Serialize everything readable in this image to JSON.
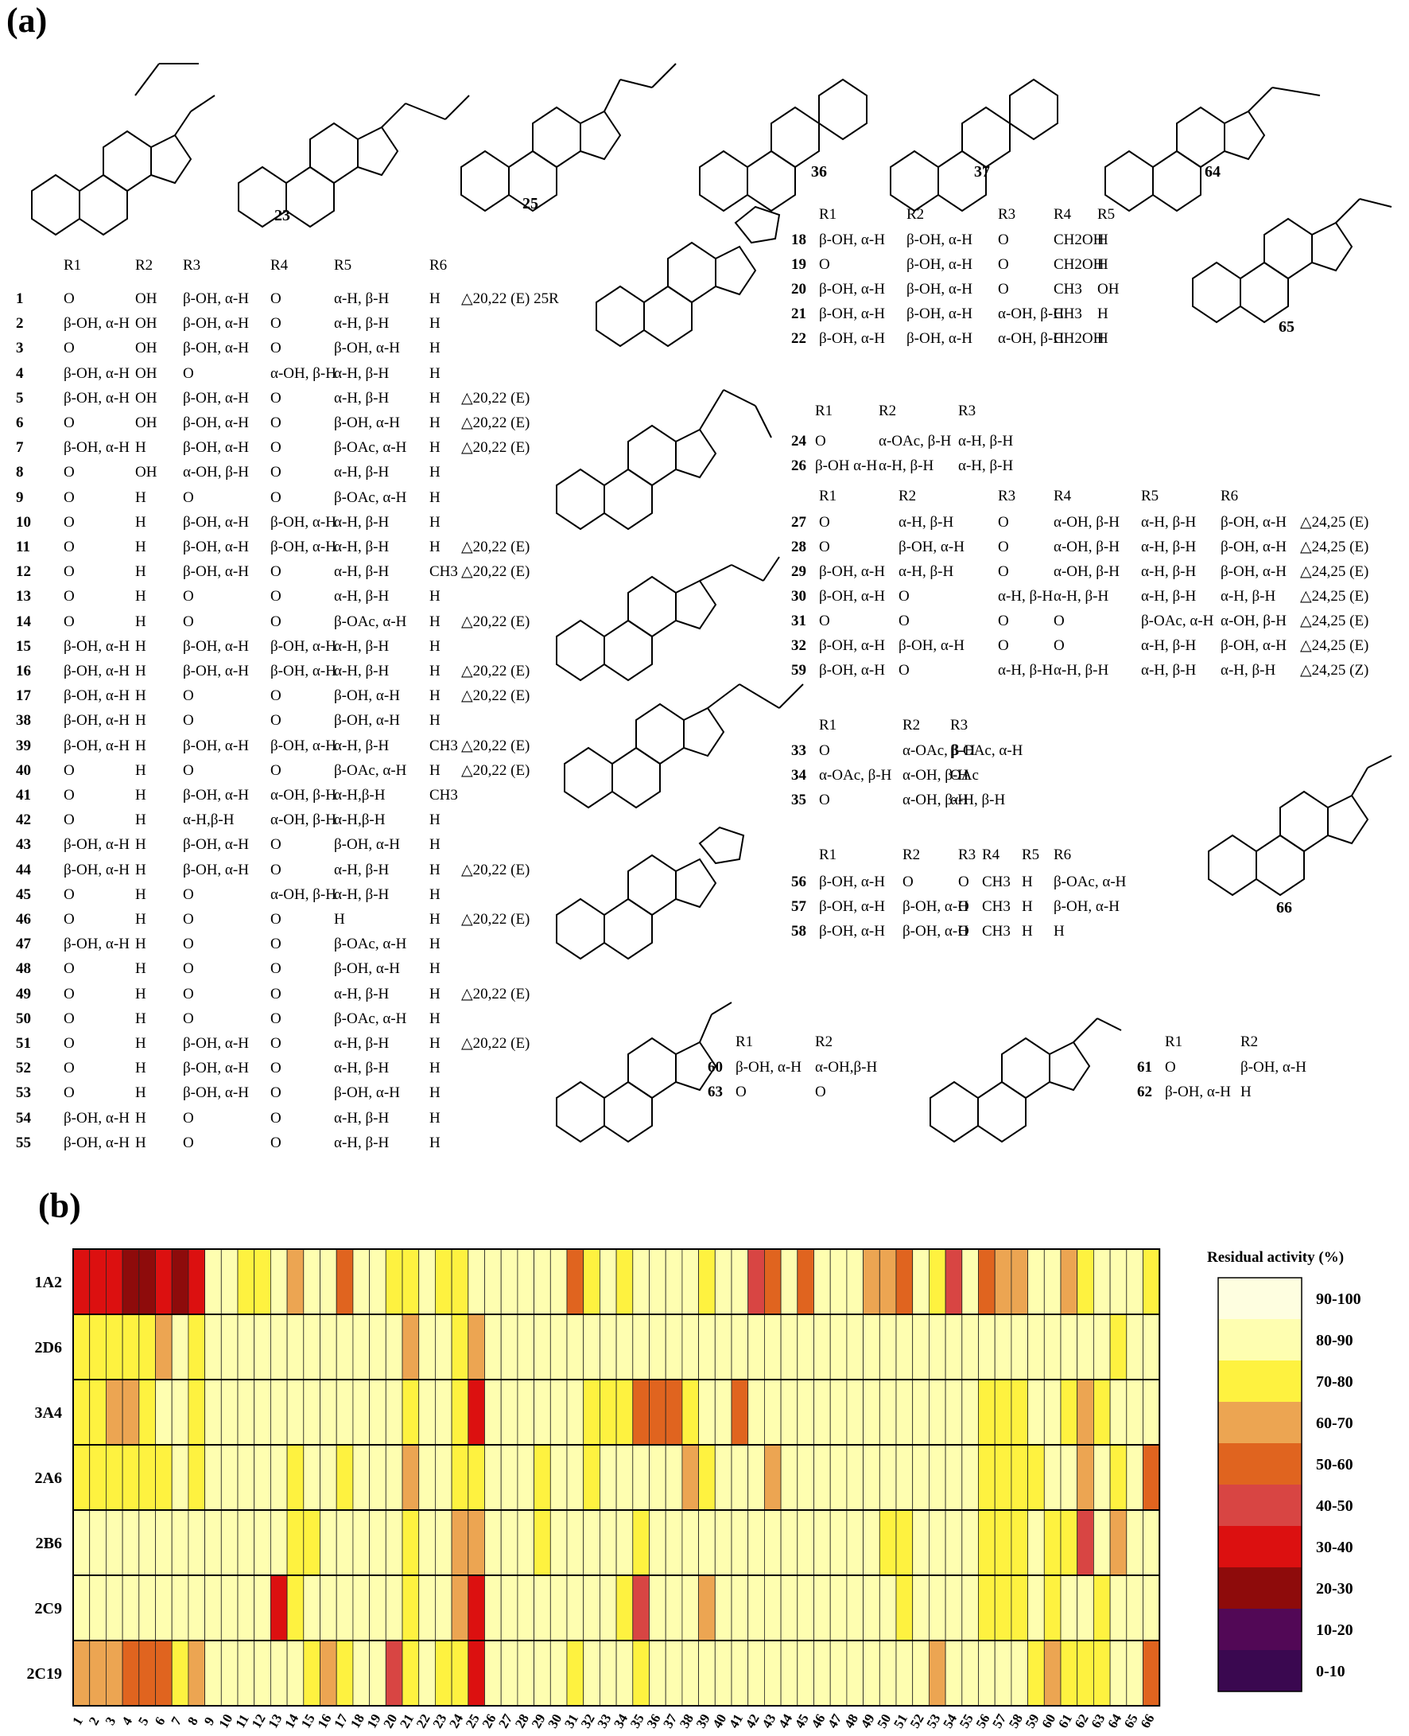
{
  "panel_a_label": "(a)",
  "panel_b_label": "(b)",
  "structure_labels": [
    "23",
    "25",
    "36",
    "37",
    "64",
    "65",
    "66"
  ],
  "table1": {
    "headers": [
      "R1",
      "R2",
      "R3",
      "R4",
      "R5",
      "R6"
    ],
    "rows": [
      [
        "1",
        "O",
        "OH",
        "β-OH, α-H",
        "O",
        "α-H, β-H",
        "H",
        "△20,22 (E) 25R"
      ],
      [
        "2",
        "β-OH, α-H",
        "OH",
        "β-OH, α-H",
        "O",
        "α-H, β-H",
        "H",
        ""
      ],
      [
        "3",
        "O",
        "OH",
        "β-OH, α-H",
        "O",
        "β-OH, α-H",
        "H",
        ""
      ],
      [
        "4",
        "β-OH, α-H",
        "OH",
        "O",
        "α-OH, β-H",
        "α-H, β-H",
        "H",
        ""
      ],
      [
        "5",
        "β-OH, α-H",
        "OH",
        "β-OH, α-H",
        "O",
        "α-H, β-H",
        "H",
        "△20,22 (E)"
      ],
      [
        "6",
        "O",
        "OH",
        "β-OH, α-H",
        "O",
        "β-OH, α-H",
        "H",
        "△20,22 (E)"
      ],
      [
        "7",
        "β-OH, α-H",
        "H",
        "β-OH, α-H",
        "O",
        "β-OAc, α-H",
        "H",
        "△20,22 (E)"
      ],
      [
        "8",
        "O",
        "OH",
        "α-OH, β-H",
        "O",
        "α-H, β-H",
        "H",
        ""
      ],
      [
        "9",
        "O",
        "H",
        "O",
        "O",
        "β-OAc, α-H",
        "H",
        ""
      ],
      [
        "10",
        "O",
        "H",
        "β-OH, α-H",
        "β-OH, α-H",
        "α-H, β-H",
        "H",
        ""
      ],
      [
        "11",
        "O",
        "H",
        "β-OH, α-H",
        "β-OH, α-H",
        "α-H, β-H",
        "H",
        "△20,22 (E)"
      ],
      [
        "12",
        "O",
        "H",
        "β-OH, α-H",
        "O",
        "α-H, β-H",
        "CH3",
        "△20,22 (E)"
      ],
      [
        "13",
        "O",
        "H",
        "O",
        "O",
        "α-H, β-H",
        "H",
        ""
      ],
      [
        "14",
        "O",
        "H",
        "O",
        "O",
        "β-OAc, α-H",
        "H",
        "△20,22 (E)"
      ],
      [
        "15",
        "β-OH, α-H",
        "H",
        "β-OH, α-H",
        "β-OH, α-H",
        "α-H, β-H",
        "H",
        ""
      ],
      [
        "16",
        "β-OH, α-H",
        "H",
        "β-OH, α-H",
        "β-OH, α-H",
        "α-H, β-H",
        "H",
        "△20,22 (E)"
      ],
      [
        "17",
        "β-OH, α-H",
        "H",
        "O",
        "O",
        "β-OH, α-H",
        "H",
        "△20,22 (E)"
      ],
      [
        "38",
        "β-OH, α-H",
        "H",
        "O",
        "O",
        "β-OH, α-H",
        "H",
        ""
      ],
      [
        "39",
        "β-OH, α-H",
        "H",
        "β-OH, α-H",
        "β-OH, α-H",
        "α-H, β-H",
        "CH3",
        "△20,22 (E)"
      ],
      [
        "40",
        "O",
        "H",
        "O",
        "O",
        "β-OAc, α-H",
        "H",
        "△20,22 (E)"
      ],
      [
        "41",
        "O",
        "H",
        "β-OH, α-H",
        "α-OH, β-H",
        "α-H,β-H",
        "CH3",
        ""
      ],
      [
        "42",
        "O",
        "H",
        "α-H,β-H",
        "α-OH, β-H",
        "α-H,β-H",
        "H",
        ""
      ],
      [
        "43",
        "β-OH, α-H",
        "H",
        "β-OH, α-H",
        "O",
        "β-OH, α-H",
        "H",
        ""
      ],
      [
        "44",
        "β-OH, α-H",
        "H",
        "β-OH, α-H",
        "O",
        "α-H, β-H",
        "H",
        "△20,22 (E)"
      ],
      [
        "45",
        "O",
        "H",
        "O",
        "α-OH, β-H",
        "α-H, β-H",
        "H",
        ""
      ],
      [
        "46",
        "O",
        "H",
        "O",
        "O",
        "H",
        "H",
        "△20,22 (E)"
      ],
      [
        "47",
        "β-OH, α-H",
        "H",
        "O",
        "O",
        "β-OAc, α-H",
        "H",
        ""
      ],
      [
        "48",
        "O",
        "H",
        "O",
        "O",
        "β-OH, α-H",
        "H",
        ""
      ],
      [
        "49",
        "O",
        "H",
        "O",
        "O",
        "α-H, β-H",
        "H",
        "△20,22 (E)"
      ],
      [
        "50",
        "O",
        "H",
        "O",
        "O",
        "β-OAc, α-H",
        "H",
        ""
      ],
      [
        "51",
        "O",
        "H",
        "β-OH, α-H",
        "O",
        "α-H, β-H",
        "H",
        "△20,22 (E)"
      ],
      [
        "52",
        "O",
        "H",
        "β-OH, α-H",
        "O",
        "α-H, β-H",
        "H",
        ""
      ],
      [
        "53",
        "O",
        "H",
        "β-OH, α-H",
        "O",
        "β-OH, α-H",
        "H",
        ""
      ],
      [
        "54",
        "β-OH, α-H",
        "H",
        "O",
        "O",
        "α-H, β-H",
        "H",
        ""
      ],
      [
        "55",
        "β-OH, α-H",
        "H",
        "O",
        "O",
        "α-H, β-H",
        "H",
        ""
      ]
    ]
  },
  "table2": {
    "headers": [
      "R1",
      "R2",
      "R3",
      "R4",
      "R5"
    ],
    "rows": [
      [
        "18",
        "β-OH, α-H",
        "β-OH, α-H",
        "O",
        "CH2OH",
        "H"
      ],
      [
        "19",
        "O",
        "β-OH, α-H",
        "O",
        "CH2OH",
        "H"
      ],
      [
        "20",
        "β-OH, α-H",
        "β-OH, α-H",
        "O",
        "CH3",
        "OH"
      ],
      [
        "21",
        "β-OH, α-H",
        "β-OH, α-H",
        "α-OH, β-H",
        "CH3",
        "H"
      ],
      [
        "22",
        "β-OH, α-H",
        "β-OH, α-H",
        "α-OH, β-H",
        "CH2OH",
        "H"
      ]
    ]
  },
  "table3": {
    "headers": [
      "R1",
      "R2",
      "R3"
    ],
    "rows": [
      [
        "24",
        "O",
        "α-OAc, β-H",
        "α-H, β-H"
      ],
      [
        "26",
        "β-OH α-H",
        "α-H, β-H",
        "α-H, β-H"
      ]
    ]
  },
  "table4": {
    "headers": [
      "R1",
      "R2",
      "R3",
      "R4",
      "R5",
      "R6"
    ],
    "rows": [
      [
        "27",
        "O",
        "α-H, β-H",
        "O",
        "α-OH, β-H",
        "α-H, β-H",
        "β-OH, α-H",
        "△24,25 (E)"
      ],
      [
        "28",
        "O",
        "β-OH, α-H",
        "O",
        "α-OH, β-H",
        "α-H, β-H",
        "β-OH, α-H",
        "△24,25 (E)"
      ],
      [
        "29",
        "β-OH, α-H",
        "α-H, β-H",
        "O",
        "α-OH, β-H",
        "α-H, β-H",
        "β-OH, α-H",
        "△24,25 (E)"
      ],
      [
        "30",
        "β-OH, α-H",
        "O",
        "α-H, β-H",
        "α-H, β-H",
        "α-H, β-H",
        "α-H, β-H",
        "△24,25 (E)"
      ],
      [
        "31",
        "O",
        "O",
        "O",
        "O",
        "β-OAc, α-H",
        "α-OH, β-H",
        "△24,25 (E)"
      ],
      [
        "32",
        "β-OH, α-H",
        "β-OH, α-H",
        "O",
        "O",
        "α-H, β-H",
        "β-OH, α-H",
        "△24,25 (E)"
      ],
      [
        "59",
        "β-OH, α-H",
        "O",
        "α-H, β-H",
        "α-H, β-H",
        "α-H, β-H",
        "α-H, β-H",
        "△24,25 (Z)"
      ]
    ]
  },
  "table5": {
    "headers": [
      "R1",
      "R2",
      "R3"
    ],
    "rows": [
      [
        "33",
        "O",
        "α-OAc, β-H",
        "β-OAc, α-H"
      ],
      [
        "34",
        "α-OAc, β-H",
        "α-OH, β-H",
        "OAc"
      ],
      [
        "35",
        "O",
        "α-OH, β-H",
        "α-H, β-H"
      ]
    ]
  },
  "table6": {
    "headers": [
      "R1",
      "R2",
      "R3",
      "R4",
      "R5",
      "R6"
    ],
    "rows": [
      [
        "56",
        "β-OH, α-H",
        "O",
        "O",
        "CH3",
        "H",
        "β-OAc, α-H"
      ],
      [
        "57",
        "β-OH, α-H",
        "β-OH, α-H",
        "O",
        "CH3",
        "H",
        "β-OH, α-H"
      ],
      [
        "58",
        "β-OH, α-H",
        "β-OH, α-H",
        "O",
        "CH3",
        "H",
        "H"
      ]
    ]
  },
  "table7": {
    "headers": [
      "R1",
      "R2"
    ],
    "rows": [
      [
        "60",
        "β-OH, α-H",
        "α-OH,β-H"
      ],
      [
        "63",
        "O",
        "O"
      ]
    ]
  },
  "table8": {
    "headers": [
      "R1",
      "R2"
    ],
    "rows": [
      [
        "61",
        "O",
        "β-OH, α-H"
      ],
      [
        "62",
        "β-OH, α-H",
        "H"
      ]
    ]
  },
  "chart_data": {
    "type": "heatmap",
    "title": "",
    "rows": [
      "1A2",
      "2D6",
      "3A4",
      "2A6",
      "2B6",
      "2C9",
      "2C19"
    ],
    "columns": [
      "1",
      "2",
      "3",
      "4",
      "5",
      "6",
      "7",
      "8",
      "9",
      "10",
      "11",
      "12",
      "13",
      "14",
      "15",
      "16",
      "17",
      "18",
      "19",
      "20",
      "21",
      "22",
      "23",
      "24",
      "25",
      "26",
      "27",
      "28",
      "29",
      "30",
      "31",
      "32",
      "33",
      "34",
      "35",
      "36",
      "37",
      "38",
      "39",
      "40",
      "41",
      "42",
      "43",
      "44",
      "45",
      "46",
      "47",
      "48",
      "49",
      "50",
      "51",
      "52",
      "53",
      "54",
      "55",
      "56",
      "57",
      "58",
      "59",
      "60",
      "61",
      "62",
      "63",
      "64",
      "65",
      "66"
    ],
    "values": [
      [
        35,
        35,
        35,
        25,
        25,
        35,
        25,
        35,
        85,
        85,
        75,
        75,
        85,
        65,
        85,
        85,
        55,
        85,
        85,
        75,
        75,
        85,
        75,
        75,
        85,
        85,
        85,
        85,
        85,
        85,
        55,
        75,
        85,
        75,
        85,
        85,
        85,
        85,
        75,
        85,
        85,
        45,
        55,
        85,
        55,
        85,
        85,
        85,
        65,
        65,
        55,
        85,
        75,
        45,
        85,
        55,
        65,
        65,
        85,
        85,
        65,
        75,
        85,
        85,
        85,
        75
      ],
      [
        75,
        75,
        75,
        75,
        75,
        65,
        85,
        75,
        85,
        85,
        85,
        85,
        85,
        85,
        85,
        85,
        85,
        85,
        85,
        85,
        65,
        85,
        85,
        75,
        65,
        85,
        85,
        85,
        85,
        85,
        85,
        85,
        85,
        85,
        85,
        85,
        85,
        85,
        85,
        85,
        85,
        85,
        85,
        85,
        85,
        85,
        85,
        85,
        85,
        85,
        85,
        85,
        85,
        85,
        85,
        85,
        85,
        85,
        85,
        85,
        85,
        85,
        85,
        75,
        85,
        85
      ],
      [
        75,
        75,
        65,
        65,
        75,
        85,
        85,
        75,
        85,
        85,
        85,
        85,
        85,
        85,
        85,
        85,
        85,
        85,
        85,
        85,
        75,
        85,
        85,
        75,
        35,
        85,
        85,
        85,
        85,
        85,
        85,
        75,
        75,
        75,
        55,
        55,
        55,
        75,
        85,
        85,
        55,
        85,
        85,
        85,
        85,
        85,
        85,
        85,
        85,
        85,
        85,
        85,
        85,
        85,
        85,
        75,
        75,
        75,
        85,
        85,
        75,
        65,
        75,
        85,
        85,
        85
      ],
      [
        75,
        75,
        75,
        75,
        75,
        75,
        85,
        75,
        85,
        85,
        85,
        85,
        85,
        75,
        85,
        85,
        75,
        85,
        85,
        85,
        65,
        85,
        85,
        75,
        75,
        85,
        85,
        85,
        75,
        85,
        85,
        75,
        85,
        85,
        85,
        85,
        85,
        65,
        75,
        85,
        85,
        85,
        65,
        85,
        85,
        85,
        85,
        85,
        85,
        85,
        85,
        85,
        85,
        85,
        85,
        75,
        75,
        75,
        75,
        85,
        85,
        65,
        85,
        75,
        85,
        55
      ],
      [
        85,
        85,
        85,
        85,
        85,
        85,
        85,
        85,
        85,
        85,
        85,
        85,
        85,
        75,
        75,
        85,
        85,
        85,
        85,
        85,
        75,
        85,
        85,
        65,
        65,
        85,
        85,
        85,
        75,
        85,
        85,
        85,
        85,
        85,
        75,
        85,
        85,
        85,
        85,
        85,
        85,
        85,
        85,
        85,
        85,
        85,
        85,
        85,
        85,
        75,
        75,
        85,
        85,
        85,
        85,
        75,
        75,
        75,
        85,
        75,
        75,
        45,
        85,
        65,
        85,
        85
      ],
      [
        85,
        85,
        85,
        85,
        85,
        85,
        85,
        85,
        85,
        85,
        85,
        85,
        35,
        75,
        85,
        85,
        85,
        85,
        85,
        85,
        75,
        85,
        85,
        65,
        35,
        85,
        85,
        85,
        85,
        85,
        85,
        85,
        85,
        75,
        45,
        85,
        85,
        85,
        65,
        85,
        85,
        85,
        85,
        85,
        85,
        85,
        85,
        85,
        85,
        85,
        75,
        85,
        85,
        85,
        85,
        75,
        75,
        75,
        85,
        75,
        85,
        85,
        75,
        85,
        85,
        85
      ],
      [
        65,
        65,
        65,
        55,
        55,
        55,
        75,
        65,
        85,
        85,
        85,
        85,
        85,
        85,
        75,
        65,
        75,
        85,
        85,
        45,
        75,
        85,
        75,
        75,
        35,
        85,
        85,
        85,
        85,
        85,
        75,
        85,
        85,
        85,
        75,
        85,
        85,
        85,
        85,
        85,
        85,
        85,
        85,
        85,
        85,
        85,
        85,
        85,
        85,
        85,
        85,
        85,
        65,
        85,
        85,
        85,
        85,
        85,
        75,
        65,
        75,
        75,
        75,
        85,
        85,
        55
      ]
    ],
    "value_meaning": "residual activity (%) bin midpoint",
    "legend": {
      "title": "Residual activity (%)",
      "labels": [
        "90-100",
        "80-90",
        "70-80",
        "60-70",
        "50-60",
        "40-50",
        "30-40",
        "20-30",
        "10-20",
        "0-10"
      ],
      "colors": [
        "#fefee0",
        "#fefeb0",
        "#fef240",
        "#eca552",
        "#e0641f",
        "#d84543",
        "#dc1010",
        "#8e0b0b",
        "#520856",
        "#3a0850"
      ]
    }
  }
}
